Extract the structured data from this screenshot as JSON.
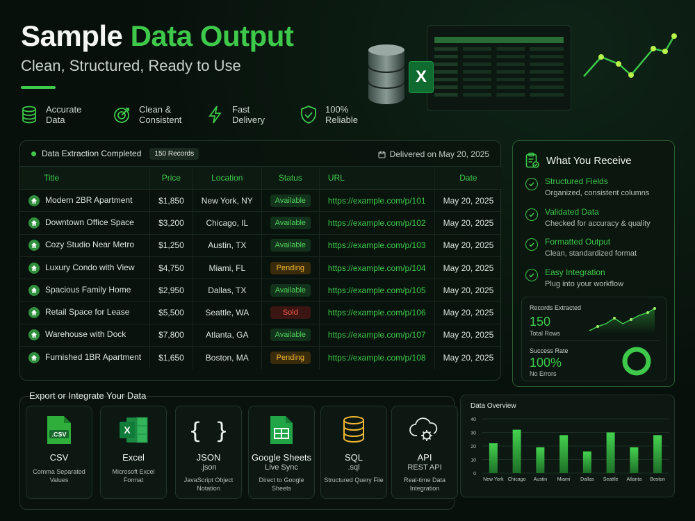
{
  "hero": {
    "title_a": "Sample",
    "title_b": "Data Output",
    "subtitle": "Clean, Structured, Ready to Use"
  },
  "features": [
    {
      "icon": "database-icon",
      "label": "Accurate Data"
    },
    {
      "icon": "target-icon",
      "label": "Clean & Consistent"
    },
    {
      "icon": "lightning-icon",
      "label": "Fast Delivery"
    },
    {
      "icon": "shield-check-icon",
      "label": "100% Reliable"
    }
  ],
  "table_panel": {
    "status": "Data Extraction Completed",
    "records_badge": "150 Records",
    "delivered": "Delivered on May 20, 2025",
    "columns": [
      "Title",
      "Price",
      "Location",
      "Status",
      "URL",
      "Date"
    ],
    "rows": [
      {
        "title": "Modern 2BR Apartment",
        "price": "$1,850",
        "location": "New York, NY",
        "status": "Available",
        "status_kind": "available",
        "url": "https://example.com/p/101",
        "date": "May 20, 2025"
      },
      {
        "title": "Downtown Office Space",
        "price": "$3,200",
        "location": "Chicago, IL",
        "status": "Available",
        "status_kind": "available",
        "url": "https://example.com/p/102",
        "date": "May 20, 2025"
      },
      {
        "title": "Cozy Studio Near Metro",
        "price": "$1,250",
        "location": "Austin, TX",
        "status": "Available",
        "status_kind": "available",
        "url": "https://example.com/p/103",
        "date": "May 20, 2025"
      },
      {
        "title": "Luxury Condo with View",
        "price": "$4,750",
        "location": "Miami, FL",
        "status": "Pending",
        "status_kind": "pending",
        "url": "https://example.com/p/104",
        "date": "May 20, 2025"
      },
      {
        "title": "Spacious Family Home",
        "price": "$2,950",
        "location": "Dallas, TX",
        "status": "Available",
        "status_kind": "available",
        "url": "https://example.com/p/105",
        "date": "May 20, 2025"
      },
      {
        "title": "Retail Space for Lease",
        "price": "$5,500",
        "location": "Seattle, WA",
        "status": "Sold",
        "status_kind": "sold",
        "url": "https://example.com/p/106",
        "date": "May 20, 2025"
      },
      {
        "title": "Warehouse with Dock",
        "price": "$7,800",
        "location": "Atlanta, GA",
        "status": "Available",
        "status_kind": "available",
        "url": "https://example.com/p/107",
        "date": "May 20, 2025"
      },
      {
        "title": "Furnished 1BR Apartment",
        "price": "$1,650",
        "location": "Boston, MA",
        "status": "Pending",
        "status_kind": "pending",
        "url": "https://example.com/p/108",
        "date": "May 20, 2025"
      }
    ]
  },
  "receive": {
    "title": "What You Receive",
    "items": [
      {
        "title": "Structured Fields",
        "desc": "Organized, consistent columns"
      },
      {
        "title": "Validated Data",
        "desc": "Checked for accuracy & quality"
      },
      {
        "title": "Formatted Output",
        "desc": "Clean, standardized format"
      },
      {
        "title": "Easy Integration",
        "desc": "Plug into your workflow"
      }
    ],
    "records_label": "Records Extracted",
    "records_value": "150",
    "records_sub": "Total Rows",
    "success_label": "Success Rate",
    "success_value": "100%",
    "success_sub": "No Errors",
    "success_fraction": 1.0
  },
  "export": {
    "title": "Export or Integrate Your Data",
    "cards": [
      {
        "icon": "csv-file-icon",
        "icon_text": ".CSV",
        "name": "CSV",
        "sub": "",
        "desc": "Comma Separated Values"
      },
      {
        "icon": "excel-icon",
        "icon_text": "X",
        "name": "Excel",
        "sub": "",
        "desc": "Microsoft Excel Format"
      },
      {
        "icon": "json-braces-icon",
        "icon_text": "{ }",
        "name": "JSON",
        "sub": ".json",
        "desc": "JavaScript Object Notation"
      },
      {
        "icon": "google-sheets-icon",
        "icon_text": "",
        "name": "Google Sheets",
        "sub": "Live Sync",
        "desc": "Direct to Google Sheets"
      },
      {
        "icon": "sql-database-icon",
        "icon_text": "",
        "name": "SQL",
        "sub": ".sql",
        "desc": "Structured Query File"
      },
      {
        "icon": "cloud-api-icon",
        "icon_text": "",
        "name": "API",
        "sub": "REST API",
        "desc": "Real-time Data Integration"
      }
    ]
  },
  "colors": {
    "accent": "#3ec94b",
    "pending": "#f2b731",
    "sold": "#ff5a4d"
  },
  "chart_data": {
    "type": "bar",
    "title": "Data Overview",
    "categories": [
      "New York",
      "Chicago",
      "Austin",
      "Miami",
      "Dallas",
      "Seattle",
      "Atlanta",
      "Boston"
    ],
    "values": [
      22,
      32,
      19,
      28,
      16,
      30,
      19,
      28
    ],
    "ylim": [
      0,
      40
    ],
    "yticks": [
      0,
      10,
      20,
      30,
      40
    ],
    "xlabel": "",
    "ylabel": "",
    "grid": true
  }
}
